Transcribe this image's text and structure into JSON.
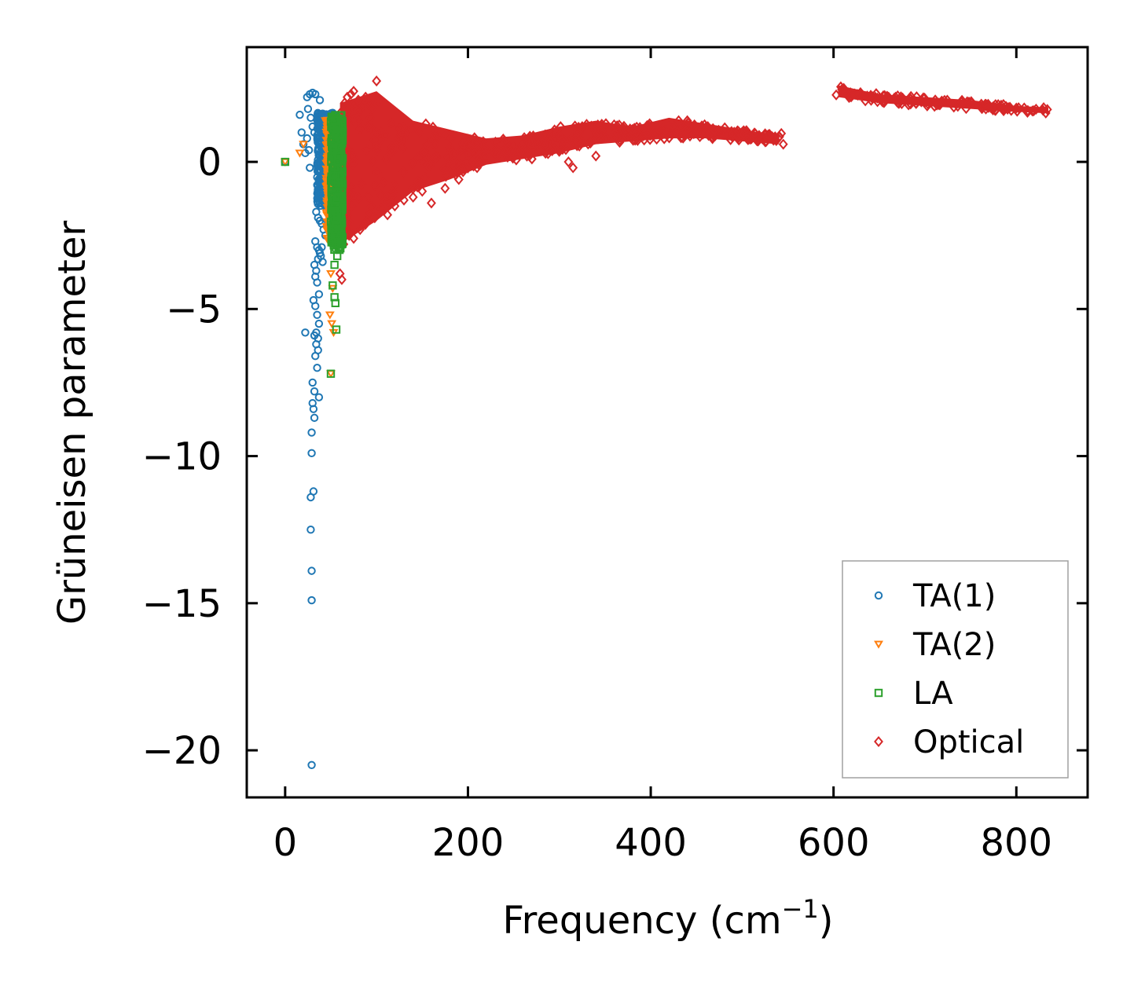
{
  "chart_data": {
    "type": "scatter",
    "title": "",
    "xlabel": "Frequency (cm",
    "xlabel_sup": "−1",
    "xlabel_end": ")",
    "ylabel": "Grüneisen parameter",
    "xlim": [
      -42,
      878
    ],
    "ylim": [
      -21.6,
      3.9
    ],
    "xticks": [
      0,
      200,
      400,
      600,
      800
    ],
    "xtick_labels": [
      "0",
      "200",
      "400",
      "600",
      "800"
    ],
    "yticks": [
      0,
      -5,
      -10,
      -15,
      -20
    ],
    "ytick_labels": [
      "0",
      "−5",
      "−10",
      "−15",
      "−20"
    ],
    "grid": false,
    "legend_position": "bottom-right",
    "series": [
      {
        "name": "TA(1)",
        "marker": "circle",
        "color": "#1f77b4",
        "x": [
          0,
          24,
          27,
          30,
          33,
          38,
          16,
          18,
          20,
          22,
          25,
          28,
          30,
          32,
          35,
          37,
          39,
          40,
          42,
          44,
          45,
          47,
          48,
          50,
          52,
          36,
          38,
          40,
          42,
          44,
          46,
          34,
          36,
          38,
          40,
          42,
          44,
          33,
          35,
          37,
          39,
          41,
          32,
          34,
          36,
          38,
          40,
          33,
          35,
          37,
          31,
          33,
          35,
          37,
          34,
          36,
          32,
          34,
          36,
          22,
          33,
          35,
          30,
          32,
          37,
          30,
          31,
          32,
          29,
          29,
          31,
          28,
          28,
          29,
          29,
          29,
          27,
          26,
          24,
          38,
          41,
          43,
          46,
          48,
          39,
          42,
          44,
          47,
          40,
          43,
          45,
          48,
          41,
          44,
          46,
          49,
          40,
          42,
          45,
          47,
          43
        ],
        "y": [
          0,
          2.2,
          2.3,
          2.35,
          2.3,
          2.1,
          1.6,
          1.0,
          0.6,
          0.3,
          1.8,
          1.5,
          1.2,
          1.0,
          0.9,
          0.7,
          0.6,
          0.5,
          0.4,
          0.3,
          0.2,
          0.1,
          -0.1,
          -0.3,
          -0.5,
          -0.8,
          -1.0,
          -1.1,
          -1.3,
          -1.5,
          -1.2,
          -1.7,
          -1.9,
          -2.0,
          -2.1,
          -2.3,
          -2.5,
          -2.7,
          -2.9,
          -3.0,
          -3.2,
          -3.4,
          -3.5,
          -3.7,
          -3.3,
          -3.1,
          -2.9,
          -3.9,
          -4.1,
          -4.5,
          -4.7,
          -4.9,
          -5.2,
          -5.5,
          -5.8,
          -6.0,
          -5.9,
          -6.2,
          -6.4,
          -5.8,
          -6.6,
          -7.0,
          -7.5,
          -7.8,
          -8.0,
          -8.2,
          -8.4,
          -8.7,
          -9.2,
          -9.9,
          -11.2,
          -11.4,
          -12.5,
          -13.9,
          -14.9,
          -20.5,
          -0.2,
          0.4,
          0.8,
          0.0,
          0.2,
          -0.4,
          1.4,
          1.6,
          1.1,
          -0.6,
          0.3,
          0.9,
          -0.2,
          0.5,
          1.3,
          -0.9,
          -0.7,
          0.1,
          0.6,
          -0.3,
          1.0,
          -0.5,
          0.7,
          1.5,
          -0.1
        ],
        "dense_region": {
          "x_range": [
            35,
            55
          ],
          "y_range": [
            -1.5,
            1.7
          ],
          "count": 420
        }
      },
      {
        "name": "TA(2)",
        "marker": "triangle-down",
        "color": "#ff7f0e",
        "x": [
          0,
          16,
          20,
          44,
          46,
          48,
          50,
          52,
          54,
          48,
          50,
          52,
          50,
          52,
          49,
          51,
          53,
          50,
          52,
          49
        ],
        "y": [
          0,
          0.3,
          0.6,
          1.4,
          1.2,
          0.8,
          0.4,
          -0.5,
          -1.0,
          -1.8,
          -2.3,
          -2.6,
          -3.8,
          -4.3,
          -5.2,
          -5.5,
          -5.8,
          -7.2,
          -2.0,
          -1.4
        ],
        "dense_region": {
          "x_range": [
            45,
            58
          ],
          "y_range": [
            -2.7,
            1.5
          ],
          "count": 380
        }
      },
      {
        "name": "LA",
        "marker": "square",
        "color": "#2ca02c",
        "x": [
          0,
          52,
          54,
          56,
          58,
          55,
          57,
          59,
          53,
          56,
          57,
          55,
          54,
          56,
          50,
          52,
          54
        ],
        "y": [
          0,
          1.5,
          1.4,
          1.2,
          0.9,
          -0.6,
          -1.2,
          -1.8,
          -2.3,
          -2.8,
          -3.2,
          -4.8,
          -4.6,
          -5.7,
          -7.2,
          -4.2,
          -3.5
        ],
        "dense_region": {
          "x_range": [
            50,
            63
          ],
          "y_range": [
            -3.0,
            1.6
          ],
          "count": 360
        }
      },
      {
        "name": "Optical",
        "marker": "diamond",
        "color": "#d62728",
        "x": [
          100,
          65,
          68,
          72,
          75,
          80,
          85,
          88,
          92,
          95,
          60,
          62,
          58,
          60,
          64,
          70,
          75,
          82,
          90,
          98,
          105,
          112,
          120,
          130,
          140,
          150,
          160,
          175,
          190,
          210,
          230,
          250,
          270,
          300,
          310,
          325,
          270,
          290,
          315,
          340,
          70,
          80,
          90,
          100,
          110,
          130,
          155,
          180,
          205,
          235,
          275,
          320,
          380,
          440,
          500,
          530,
          545
        ],
        "y": [
          2.75,
          2.0,
          2.2,
          2.3,
          2.4,
          2.1,
          1.9,
          2.2,
          2.0,
          1.8,
          -3.8,
          -4.0,
          -2.7,
          -2.4,
          -2.8,
          -2.5,
          -2.6,
          -2.3,
          -2.0,
          -1.9,
          -1.6,
          -1.8,
          -1.5,
          -1.3,
          -1.2,
          -1.0,
          -1.4,
          -0.9,
          -0.6,
          -0.2,
          0.3,
          0.5,
          0.7,
          0.9,
          0.0,
          1.2,
          0.1,
          0.4,
          -0.2,
          0.2,
          1.5,
          1.4,
          1.2,
          1.0,
          0.9,
          0.8,
          0.6,
          0.5,
          0.4,
          0.6,
          0.8,
          1.0,
          1.1,
          1.4,
          1.0,
          0.9,
          0.6
        ],
        "band": [
          {
            "x": 60,
            "lo": -2.8,
            "hi": 2.0
          },
          {
            "x": 100,
            "lo": -2.0,
            "hi": 2.4
          },
          {
            "x": 140,
            "lo": -1.0,
            "hi": 1.4
          },
          {
            "x": 180,
            "lo": -0.6,
            "hi": 1.1
          },
          {
            "x": 220,
            "lo": -0.1,
            "hi": 0.8
          },
          {
            "x": 260,
            "lo": 0.1,
            "hi": 0.9
          },
          {
            "x": 300,
            "lo": 0.3,
            "hi": 1.2
          },
          {
            "x": 340,
            "lo": 0.6,
            "hi": 1.4
          },
          {
            "x": 380,
            "lo": 0.7,
            "hi": 1.2
          },
          {
            "x": 420,
            "lo": 0.8,
            "hi": 1.5
          },
          {
            "x": 460,
            "lo": 0.8,
            "hi": 1.3
          },
          {
            "x": 500,
            "lo": 0.7,
            "hi": 1.1
          },
          {
            "x": 540,
            "lo": 0.6,
            "hi": 0.9
          },
          {
            "x": 605,
            "lo": 2.2,
            "hi": 2.6
          },
          {
            "x": 650,
            "lo": 2.0,
            "hi": 2.3
          },
          {
            "x": 700,
            "lo": 1.9,
            "hi": 2.2
          },
          {
            "x": 750,
            "lo": 1.8,
            "hi": 2.1
          },
          {
            "x": 800,
            "lo": 1.7,
            "hi": 1.9
          },
          {
            "x": 835,
            "lo": 1.65,
            "hi": 1.85
          }
        ]
      }
    ]
  }
}
